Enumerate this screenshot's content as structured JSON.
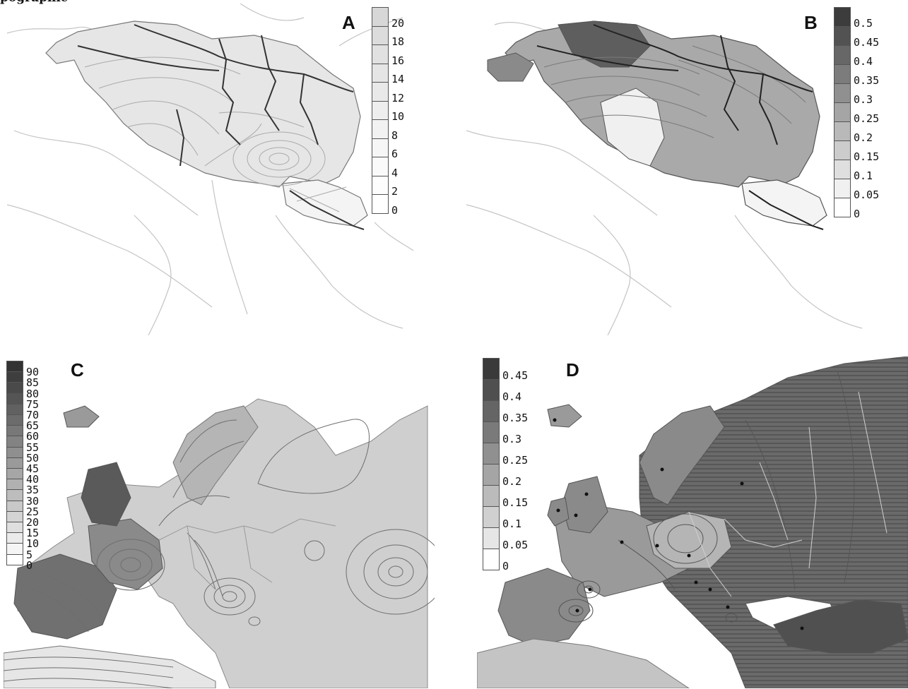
{
  "heading": "pographic",
  "panels": {
    "A": {
      "label": "A",
      "ticks": [
        "20",
        "18",
        "16",
        "14",
        "12",
        "10",
        "8",
        "6",
        "4",
        "2",
        "0"
      ],
      "shades": [
        "#d7d7d7",
        "#dcdcdc",
        "#e1e1e1",
        "#e5e5e5",
        "#e9e9e9",
        "#eeeeee",
        "#f2f2f2",
        "#f6f6f6",
        "#fafafa",
        "#fdfdfd",
        "#ffffff"
      ]
    },
    "B": {
      "label": "B",
      "ticks": [
        "0.5",
        "0.45",
        "0.4",
        "0.35",
        "0.3",
        "0.25",
        "0.2",
        "0.15",
        "0.1",
        "0.05",
        "0"
      ],
      "shades": [
        "#3c3c3c",
        "#525252",
        "#676767",
        "#7c7c7c",
        "#909090",
        "#a5a5a5",
        "#b9b9b9",
        "#cccccc",
        "#dfdfdf",
        "#f0f0f0",
        "#ffffff"
      ]
    },
    "C": {
      "label": "C",
      "ticks": [
        "90",
        "85",
        "80",
        "75",
        "70",
        "65",
        "60",
        "55",
        "50",
        "45",
        "40",
        "35",
        "30",
        "25",
        "20",
        "15",
        "10",
        "5",
        "0"
      ],
      "shades": [
        "#333333",
        "#3e3e3e",
        "#4a4a4a",
        "#555555",
        "#616161",
        "#6c6c6c",
        "#787878",
        "#838383",
        "#8f8f8f",
        "#9a9a9a",
        "#a6a6a6",
        "#b1b1b1",
        "#bdbdbd",
        "#c8c8c8",
        "#d4d4d4",
        "#dfdfdf",
        "#ebebeb",
        "#f5f5f5",
        "#ffffff"
      ]
    },
    "D": {
      "label": "D",
      "ticks": [
        "0.45",
        "0.4",
        "0.35",
        "0.3",
        "0.25",
        "0.2",
        "0.15",
        "0.1",
        "0.05",
        "0"
      ],
      "shades": [
        "#3a3a3a",
        "#4f4f4f",
        "#656565",
        "#7a7a7a",
        "#909090",
        "#a5a5a5",
        "#bbbbbb",
        "#d0d0d0",
        "#e6e6e6",
        "#ffffff"
      ]
    }
  }
}
